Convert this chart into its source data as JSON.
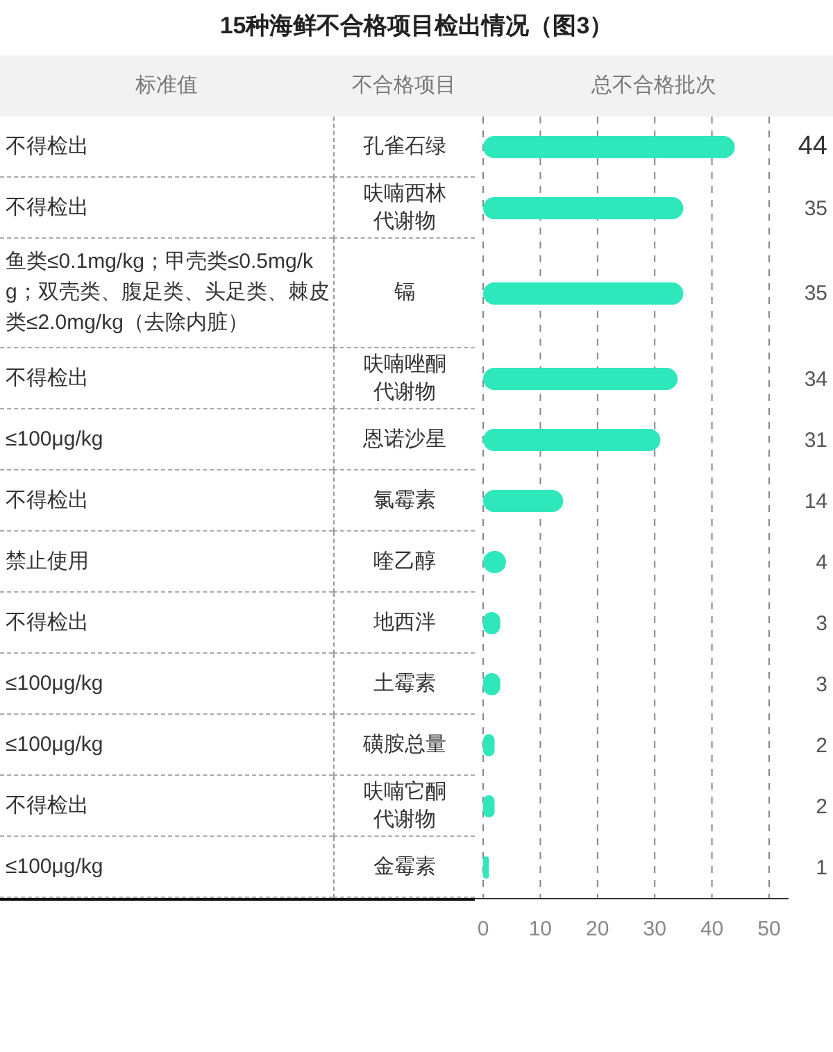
{
  "chart_data": {
    "type": "bar",
    "orientation": "horizontal",
    "title": "15种海鲜不合格项目检出情况（图3）",
    "xlabel": "总不合格批次",
    "ylabel": "不合格项目",
    "categories": [
      "孔雀石绿",
      "呋喃西林代谢物",
      "镉",
      "呋喃唑酮代谢物",
      "恩诺沙星",
      "氯霉素",
      "喹乙醇",
      "地西泮",
      "土霉素",
      "磺胺总量",
      "呋喃它酮代谢物",
      "金霉素"
    ],
    "values": [
      44,
      35,
      35,
      34,
      31,
      14,
      4,
      3,
      3,
      2,
      2,
      1
    ],
    "color": "#2ee8bc",
    "xlim": [
      0,
      50
    ],
    "xticks": [
      0,
      10,
      20,
      30,
      40,
      50
    ],
    "grid": "x",
    "data_labels": true,
    "annotations": [
      "标准值",
      "不得检出",
      "不得检出",
      "鱼类≤0.1mg/kg；甲壳类≤0.5mg/kg；双壳类、腹足类、头足类、棘皮类≤2.0mg/kg（去除内脏）",
      "不得检出",
      "≤100μg/kg",
      "不得检出",
      "禁止使用",
      "不得检出",
      "≤100μg/kg",
      "≤100μg/kg",
      "不得检出",
      "≤100μg/kg"
    ]
  }
}
